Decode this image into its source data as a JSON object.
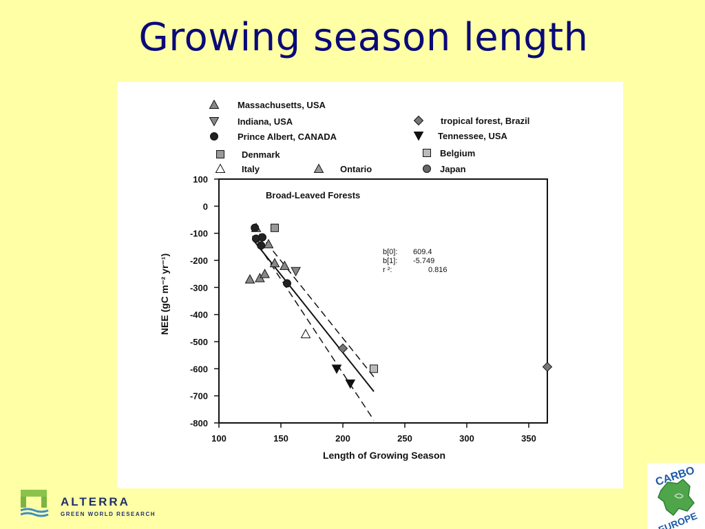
{
  "slide": {
    "title": "Growing season length"
  },
  "logos": {
    "alterra_name": "ALTERRA",
    "alterra_subtitle": "GREEN WORLD RESEARCH",
    "carbo_top": "CARBO",
    "carbo_bottom": "EUROPE"
  },
  "chart_data": {
    "type": "scatter",
    "title": "Broad-Leaved Forests",
    "xlabel": "Length of Growing Season",
    "ylabel": "NEE (gC m⁻² yr⁻¹)",
    "xlim": [
      100,
      370
    ],
    "ylim": [
      -800,
      100
    ],
    "xticks": [
      100,
      150,
      200,
      250,
      300,
      350
    ],
    "yticks": [
      100,
      0,
      -100,
      -200,
      -300,
      -400,
      -500,
      -600,
      -700,
      -800
    ],
    "grid": false,
    "legend_position": "top",
    "annotations": [
      {
        "label": "b[0]:",
        "value": "609.4"
      },
      {
        "label": "b[1]:",
        "value": "-5.749"
      },
      {
        "label": "r ²:",
        "value": "0.816"
      }
    ],
    "regression": {
      "intercept": 609.4,
      "slope": -5.749,
      "x_range": [
        127,
        225
      ]
    },
    "confidence_band": {
      "upper": [
        [
          127,
          -70
        ],
        [
          225,
          -630
        ]
      ],
      "lower": [
        [
          127,
          -110
        ],
        [
          225,
          -790
        ]
      ]
    },
    "series": [
      {
        "name": "Massachusetts, USA",
        "marker": "triangle-up",
        "fill": "#888888",
        "points": [
          [
            130,
            -80
          ],
          [
            140,
            -140
          ],
          [
            145,
            -210
          ],
          [
            153,
            -220
          ],
          [
            125,
            -270
          ],
          [
            133,
            -265
          ],
          [
            137,
            -250
          ]
        ]
      },
      {
        "name": "Indiana, USA",
        "marker": "triangle-down",
        "fill": "#888888",
        "points": [
          [
            162,
            -240
          ]
        ]
      },
      {
        "name": "Prince Albert, CANADA",
        "marker": "circle",
        "fill": "#222222",
        "points": [
          [
            129,
            -80
          ],
          [
            130,
            -120
          ],
          [
            135,
            -115
          ],
          [
            134,
            -145
          ],
          [
            155,
            -285
          ]
        ]
      },
      {
        "name": "tropical forest, Brazil",
        "marker": "diamond",
        "fill": "#777777",
        "points": [
          [
            365,
            -593
          ],
          [
            200,
            -525
          ]
        ]
      },
      {
        "name": "Tennessee, USA",
        "marker": "triangle-down",
        "fill": "#111111",
        "points": [
          [
            195,
            -600
          ],
          [
            206,
            -655
          ]
        ]
      },
      {
        "name": "Denmark",
        "marker": "square",
        "fill": "#999999",
        "points": [
          [
            145,
            -80
          ]
        ]
      },
      {
        "name": "Belgium",
        "marker": "square",
        "fill": "#BBBBBB",
        "points": [
          [
            225,
            -600
          ]
        ]
      },
      {
        "name": "Italy",
        "marker": "triangle-up",
        "fill": "#FFFFFF",
        "points": [
          [
            170,
            -472
          ]
        ]
      },
      {
        "name": "Ontario",
        "marker": "triangle-up",
        "fill": "#999999",
        "points": []
      },
      {
        "name": "Japan",
        "marker": "circle",
        "fill": "#666666",
        "points": []
      }
    ]
  }
}
